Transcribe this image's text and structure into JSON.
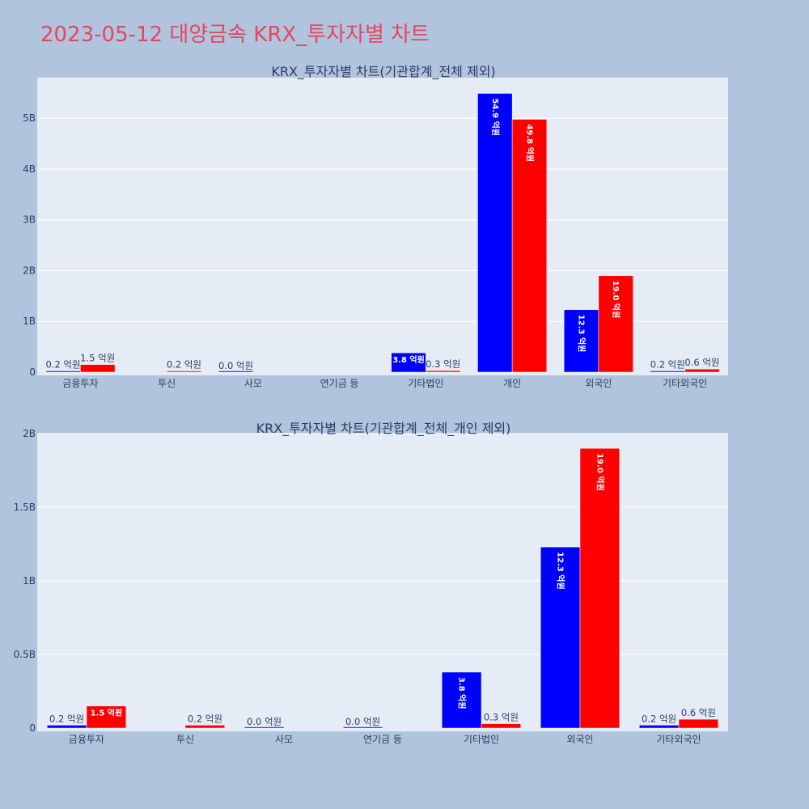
{
  "title": "2023-05-12 대양금속 KRX_투자자별 차트",
  "colors": {
    "buy": "#0000ff",
    "sell": "#ff0000",
    "plot_bg": "#e5ecf6",
    "page_bg": "#b0c4de",
    "title": "#e8455e"
  },
  "chart_data": [
    {
      "type": "bar",
      "title": "KRX_투자자별 차트(기관합계_전체 제외)",
      "categories": [
        "금융투자",
        "투신",
        "사모",
        "연기금 등",
        "기타법인",
        "개인",
        "외국인",
        "기타외국인"
      ],
      "ylim": [
        0,
        5800000000
      ],
      "yticks": [
        0,
        1000000000,
        2000000000,
        3000000000,
        4000000000,
        5000000000
      ],
      "ytick_labels": [
        "0",
        "1B",
        "2B",
        "3B",
        "4B",
        "5B"
      ],
      "series": [
        {
          "values": [
            20000000,
            null,
            0,
            null,
            380000000,
            5490000000,
            1230000000,
            20000000
          ],
          "labels": [
            "0.2 억원",
            "",
            "0.0 억원",
            "",
            "3.8 억원",
            "54.9 억원",
            "12.3 억원",
            "0.2 억원"
          ]
        },
        {
          "values": [
            150000000,
            20000000,
            null,
            null,
            30000000,
            4980000000,
            1900000000,
            60000000
          ],
          "labels": [
            "1.5 억원",
            "0.2 억원",
            "",
            "",
            "0.3 억원",
            "49.8 억원",
            "19.0 억원",
            "0.6 억원"
          ]
        }
      ]
    },
    {
      "type": "bar",
      "title": "KRX_투자자별 차트(기관합계_전체_개인 제외)",
      "categories": [
        "금융투자",
        "투신",
        "사모",
        "연기금 등",
        "기타법인",
        "외국인",
        "기타외국인"
      ],
      "ylim": [
        0,
        2000000000
      ],
      "yticks": [
        0,
        500000000,
        1000000000,
        1500000000,
        2000000000
      ],
      "ytick_labels": [
        "0",
        "0.5B",
        "1B",
        "1.5B",
        "2B"
      ],
      "series": [
        {
          "values": [
            20000000,
            null,
            0,
            0,
            380000000,
            1230000000,
            20000000
          ],
          "labels": [
            "0.2 억원",
            "",
            "0.0 억원",
            "0.0 억원",
            "3.8 억원",
            "12.3 억원",
            "0.2 억원"
          ]
        },
        {
          "values": [
            150000000,
            20000000,
            null,
            null,
            30000000,
            1900000000,
            60000000
          ],
          "labels": [
            "1.5 억원",
            "0.2 억원",
            "",
            "",
            "0.3 억원",
            "19.0 억원",
            "0.6 억원"
          ]
        }
      ]
    }
  ]
}
